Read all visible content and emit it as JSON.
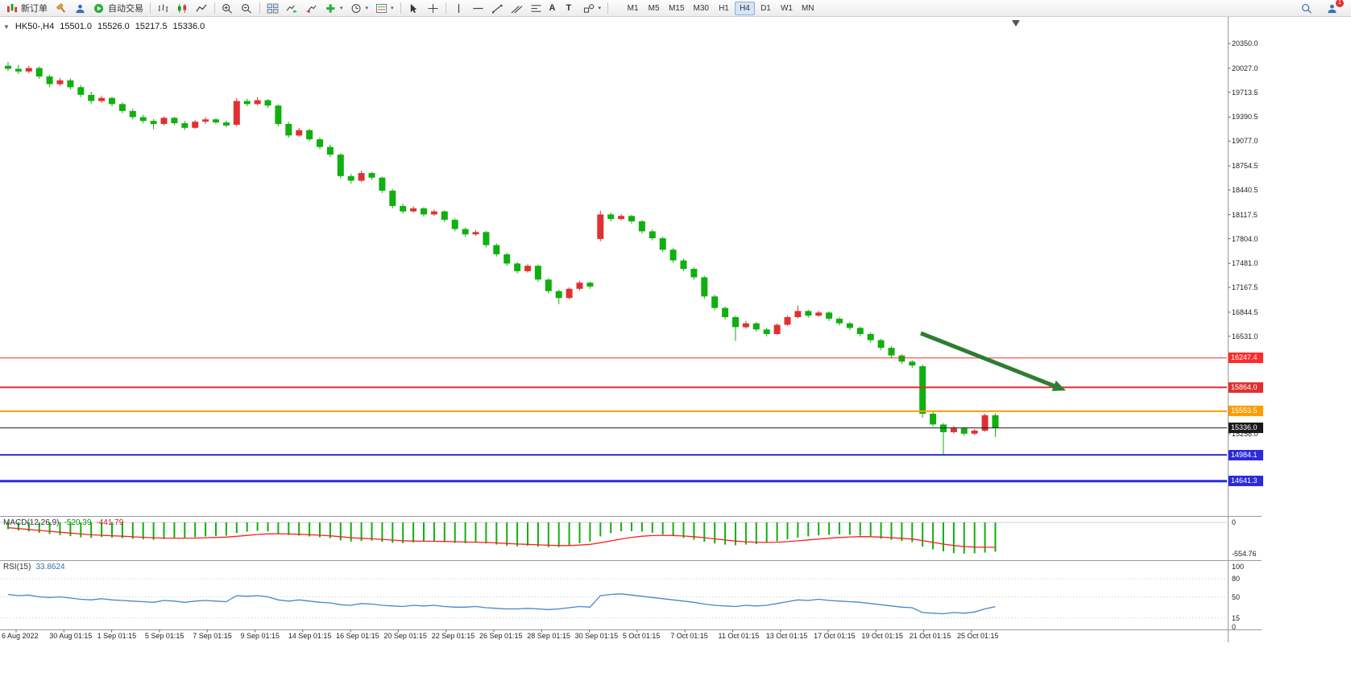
{
  "toolbar": {
    "new_order_label": "新订单",
    "algo_trading_label": "自动交易",
    "timeframes": [
      "M1",
      "M5",
      "M15",
      "M30",
      "H1",
      "H4",
      "D1",
      "W1",
      "MN"
    ],
    "active_timeframe": "H4",
    "notification_badge": "1"
  },
  "chart_header": {
    "symbol_period": "HK50-,H4",
    "open": "15501.0",
    "high": "15526.0",
    "low": "15217.5",
    "close": "15336.0"
  },
  "colors": {
    "bull": "#e03131",
    "bear": "#0fb00f",
    "macd_hist": "#0fb00f",
    "macd_signal": "#ff2020",
    "rsi_line": "#4a86c8",
    "arrow": "#2e7d32"
  },
  "price_axis": {
    "ticks": [
      {
        "label": "20350.0",
        "price": 20350
      },
      {
        "label": "20027.0",
        "price": 20027
      },
      {
        "label": "19713.5",
        "price": 19713.5
      },
      {
        "label": "19390.5",
        "price": 19390.5
      },
      {
        "label": "19077.0",
        "price": 19077
      },
      {
        "label": "18754.5",
        "price": 18754.5
      },
      {
        "label": "18440.5",
        "price": 18440.5
      },
      {
        "label": "18117.5",
        "price": 18117.5
      },
      {
        "label": "17804.0",
        "price": 17804
      },
      {
        "label": "17481.0",
        "price": 17481
      },
      {
        "label": "17167.5",
        "price": 17167.5
      },
      {
        "label": "16844.5",
        "price": 16844.5
      },
      {
        "label": "16531.0",
        "price": 16531
      },
      {
        "label": "15258.0",
        "price": 15258
      }
    ]
  },
  "levels": [
    {
      "label": "16247.4",
      "price": 16247.4,
      "color": "#ff2a2a",
      "width": 1
    },
    {
      "label": "15864.0",
      "price": 15864.0,
      "color": "#e03131",
      "width": 2
    },
    {
      "label": "15553.5",
      "price": 15553.5,
      "color": "#ff9c00",
      "width": 2
    },
    {
      "label": "15336.0",
      "price": 15336.0,
      "color": "#1a1a1a",
      "width": 1,
      "current_price": true
    },
    {
      "label": "14984.1",
      "price": 14984.1,
      "color": "#2b2bdc",
      "width": 2
    },
    {
      "label": "14641.3",
      "price": 14641.3,
      "color": "#2b2bdc",
      "width": 3
    }
  ],
  "chart_data": {
    "type": "candlestick",
    "symbol": "HK50",
    "period": "H4",
    "price_range_visible": [
      14197.5,
      20655
    ],
    "candles": [
      [
        20060,
        20110,
        19990,
        20020
      ],
      [
        20020,
        20070,
        19950,
        19985
      ],
      [
        19985,
        20060,
        19960,
        20030
      ],
      [
        20030,
        20050,
        19890,
        19920
      ],
      [
        19920,
        19945,
        19780,
        19820
      ],
      [
        19820,
        19900,
        19795,
        19870
      ],
      [
        19870,
        19895,
        19750,
        19780
      ],
      [
        19780,
        19810,
        19650,
        19680
      ],
      [
        19680,
        19720,
        19560,
        19600
      ],
      [
        19600,
        19670,
        19575,
        19640
      ],
      [
        19640,
        19655,
        19530,
        19560
      ],
      [
        19560,
        19585,
        19440,
        19470
      ],
      [
        19470,
        19500,
        19360,
        19390
      ],
      [
        19390,
        19420,
        19310,
        19340
      ],
      [
        19340,
        19365,
        19230,
        19300
      ],
      [
        19300,
        19400,
        19280,
        19380
      ],
      [
        19380,
        19395,
        19285,
        19310
      ],
      [
        19310,
        19340,
        19220,
        19250
      ],
      [
        19250,
        19350,
        19235,
        19330
      ],
      [
        19330,
        19390,
        19300,
        19360
      ],
      [
        19360,
        19375,
        19295,
        19320
      ],
      [
        19320,
        19345,
        19255,
        19280
      ],
      [
        19290,
        19640,
        19270,
        19600
      ],
      [
        19600,
        19630,
        19530,
        19560
      ],
      [
        19560,
        19650,
        19545,
        19610
      ],
      [
        19610,
        19625,
        19510,
        19540
      ],
      [
        19540,
        19555,
        19270,
        19300
      ],
      [
        19300,
        19330,
        19120,
        19150
      ],
      [
        19150,
        19250,
        19130,
        19220
      ],
      [
        19220,
        19235,
        19070,
        19100
      ],
      [
        19100,
        19125,
        18970,
        19000
      ],
      [
        19000,
        19030,
        18870,
        18900
      ],
      [
        18900,
        18920,
        18590,
        18620
      ],
      [
        18620,
        18650,
        18520,
        18560
      ],
      [
        18560,
        18690,
        18540,
        18660
      ],
      [
        18660,
        18675,
        18570,
        18600
      ],
      [
        18600,
        18615,
        18400,
        18430
      ],
      [
        18430,
        18450,
        18200,
        18230
      ],
      [
        18230,
        18260,
        18130,
        18160
      ],
      [
        18160,
        18230,
        18140,
        18200
      ],
      [
        18200,
        18215,
        18090,
        18120
      ],
      [
        18120,
        18185,
        18100,
        18160
      ],
      [
        18160,
        18175,
        18020,
        18050
      ],
      [
        18050,
        18070,
        17900,
        17930
      ],
      [
        17930,
        17950,
        17830,
        17860
      ],
      [
        17860,
        17915,
        17840,
        17890
      ],
      [
        17890,
        17905,
        17690,
        17720
      ],
      [
        17720,
        17740,
        17570,
        17600
      ],
      [
        17600,
        17620,
        17450,
        17480
      ],
      [
        17480,
        17500,
        17350,
        17380
      ],
      [
        17380,
        17470,
        17360,
        17450
      ],
      [
        17450,
        17465,
        17240,
        17270
      ],
      [
        17270,
        17290,
        17090,
        17120
      ],
      [
        17120,
        17140,
        16950,
        17030
      ],
      [
        17030,
        17170,
        17010,
        17150
      ],
      [
        17150,
        17250,
        17130,
        17230
      ],
      [
        17230,
        17245,
        17150,
        17180
      ],
      [
        17800,
        18170,
        17770,
        18120
      ],
      [
        18120,
        18145,
        18030,
        18060
      ],
      [
        18060,
        18125,
        18040,
        18100
      ],
      [
        18100,
        18115,
        18000,
        18030
      ],
      [
        18030,
        18050,
        17870,
        17900
      ],
      [
        17900,
        17925,
        17780,
        17810
      ],
      [
        17810,
        17830,
        17630,
        17660
      ],
      [
        17660,
        17680,
        17490,
        17520
      ],
      [
        17520,
        17545,
        17380,
        17410
      ],
      [
        17410,
        17430,
        17270,
        17300
      ],
      [
        17300,
        17320,
        17020,
        17050
      ],
      [
        17050,
        17075,
        16870,
        16900
      ],
      [
        16900,
        16920,
        16750,
        16780
      ],
      [
        16780,
        16800,
        16470,
        16650
      ],
      [
        16650,
        16730,
        16630,
        16700
      ],
      [
        16700,
        16715,
        16590,
        16620
      ],
      [
        16620,
        16640,
        16530,
        16560
      ],
      [
        16560,
        16700,
        16545,
        16680
      ],
      [
        16680,
        16800,
        16665,
        16780
      ],
      [
        16780,
        16930,
        16765,
        16860
      ],
      [
        16860,
        16880,
        16770,
        16800
      ],
      [
        16800,
        16865,
        16780,
        16840
      ],
      [
        16840,
        16855,
        16730,
        16760
      ],
      [
        16760,
        16780,
        16670,
        16700
      ],
      [
        16700,
        16720,
        16610,
        16640
      ],
      [
        16640,
        16660,
        16530,
        16560
      ],
      [
        16560,
        16580,
        16450,
        16480
      ],
      [
        16480,
        16500,
        16350,
        16380
      ],
      [
        16380,
        16400,
        16250,
        16280
      ],
      [
        16280,
        16300,
        16170,
        16200
      ],
      [
        16200,
        16220,
        16120,
        16150
      ],
      [
        16140,
        16165,
        15470,
        15520
      ],
      [
        15520,
        15545,
        15350,
        15380
      ],
      [
        15380,
        15400,
        14990,
        15280
      ],
      [
        15280,
        15360,
        15260,
        15330
      ],
      [
        15330,
        15345,
        15230,
        15260
      ],
      [
        15260,
        15320,
        15240,
        15300
      ],
      [
        15300,
        15520,
        15285,
        15501
      ],
      [
        15501,
        15526,
        15217.5,
        15336
      ]
    ],
    "time_labels": [
      "6 Aug 2022",
      "30 Aug 01:15",
      "1 Sep 01:15",
      "5 Sep 01:15",
      "7 Sep 01:15",
      "9 Sep 01:15",
      "14 Sep 01:15",
      "16 Sep 01:15",
      "20 Sep 01:15",
      "22 Sep 01:15",
      "26 Sep 01:15",
      "28 Sep 01:15",
      "30 Sep 01:15",
      "5 Oct 01:15",
      "7 Oct 01:15",
      "11 Oct 01:15",
      "13 Oct 01:15",
      "17 Oct 01:15",
      "19 Oct 01:15",
      "21 Oct 01:15",
      "25 Oct 01:15"
    ],
    "macd": {
      "name": "MACD(12,26,9)",
      "value_main": "-520.39",
      "value_signal": "-441.79",
      "axis_labels": [
        "0",
        "-554.76"
      ],
      "hist": [
        -120,
        -145,
        -160,
        -185,
        -205,
        -225,
        -245,
        -265,
        -275,
        -260,
        -270,
        -280,
        -290,
        -300,
        -310,
        -295,
        -285,
        -280,
        -265,
        -250,
        -240,
        -235,
        -190,
        -165,
        -150,
        -160,
        -195,
        -225,
        -235,
        -250,
        -265,
        -280,
        -320,
        -340,
        -330,
        -325,
        -345,
        -365,
        -370,
        -355,
        -345,
        -340,
        -350,
        -365,
        -370,
        -360,
        -375,
        -395,
        -415,
        -425,
        -415,
        -430,
        -440,
        -435,
        -405,
        -370,
        -340,
        -250,
        -190,
        -160,
        -155,
        -165,
        -185,
        -215,
        -245,
        -275,
        -305,
        -345,
        -375,
        -395,
        -405,
        -395,
        -385,
        -365,
        -335,
        -300,
        -270,
        -250,
        -230,
        -220,
        -215,
        -220,
        -235,
        -260,
        -290,
        -310,
        -330,
        -350,
        -430,
        -480,
        -515,
        -545,
        -554.76,
        -548,
        -535,
        -520.39
      ],
      "signal": [
        -95,
        -110,
        -125,
        -142,
        -158,
        -174,
        -190,
        -206,
        -220,
        -228,
        -237,
        -246,
        -255,
        -264,
        -273,
        -278,
        -280,
        -280,
        -278,
        -273,
        -267,
        -261,
        -247,
        -231,
        -215,
        -204,
        -202,
        -206,
        -212,
        -219,
        -228,
        -238,
        -254,
        -271,
        -283,
        -291,
        -302,
        -315,
        -326,
        -332,
        -334,
        -335,
        -338,
        -343,
        -349,
        -351,
        -356,
        -364,
        -374,
        -384,
        -390,
        -398,
        -406,
        -412,
        -411,
        -403,
        -390,
        -362,
        -328,
        -294,
        -266,
        -246,
        -234,
        -230,
        -233,
        -241,
        -254,
        -272,
        -293,
        -313,
        -331,
        -344,
        -352,
        -355,
        -351,
        -341,
        -327,
        -312,
        -296,
        -281,
        -268,
        -258,
        -253,
        -254,
        -261,
        -271,
        -283,
        -296,
        -323,
        -354,
        -386,
        -410,
        -428,
        -438,
        -441,
        -441.79
      ]
    },
    "rsi": {
      "name": "RSI(15)",
      "value": "33.8624",
      "axis_labels": [
        100,
        80,
        50,
        15,
        0
      ],
      "values": [
        54,
        52,
        53,
        50,
        49,
        50,
        48,
        46,
        45,
        47,
        45,
        44,
        43,
        42,
        41,
        44,
        43,
        41,
        43,
        44,
        43,
        42,
        52,
        51,
        52,
        50,
        45,
        43,
        45,
        43,
        41,
        40,
        37,
        36,
        39,
        38,
        36,
        35,
        34,
        36,
        35,
        36,
        34,
        33,
        33,
        34,
        32,
        31,
        30,
        30,
        31,
        30,
        29,
        30,
        32,
        34,
        33,
        52,
        54,
        55,
        53,
        51,
        49,
        47,
        45,
        43,
        41,
        38,
        36,
        35,
        34,
        36,
        35,
        36,
        39,
        42,
        45,
        44,
        46,
        44,
        43,
        42,
        41,
        39,
        37,
        35,
        33,
        32,
        24,
        23,
        22,
        24,
        23,
        25,
        30,
        33.86
      ]
    }
  },
  "annotation_arrow": {
    "from": [
      1143,
      414
    ],
    "to": [
      1310,
      480
    ]
  }
}
